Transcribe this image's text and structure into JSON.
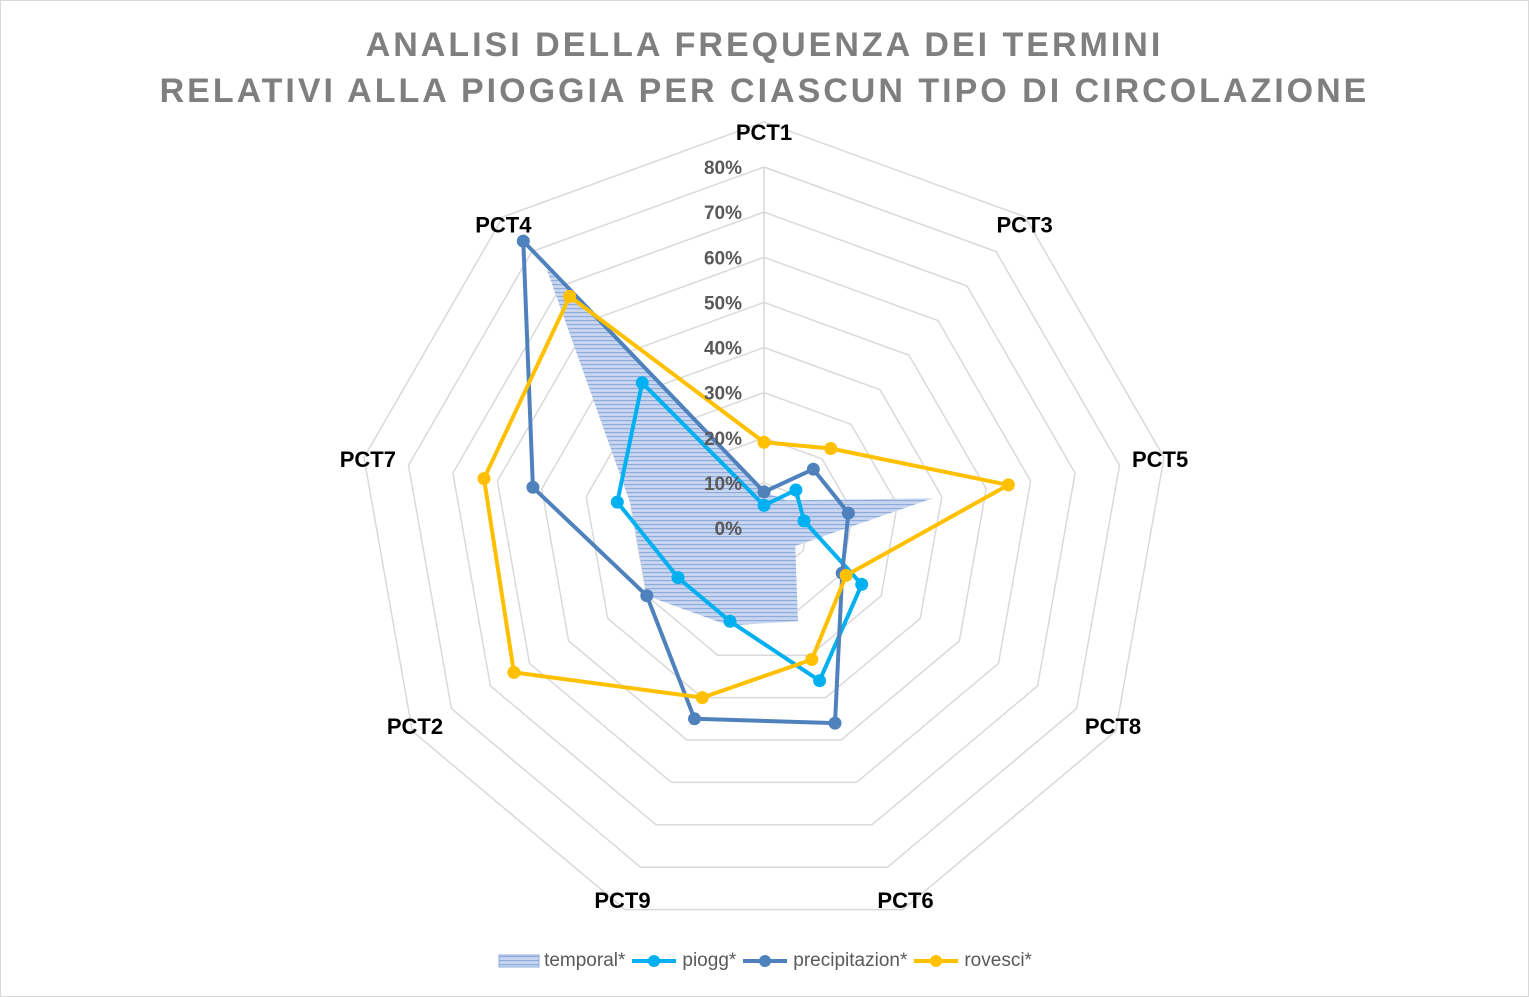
{
  "chart_data": {
    "type": "radar",
    "title": [
      "ANALISI DELLA FREQUENZA DEI TERMINI",
      "RELATIVI ALLA PIOGGIA PER CIASCUN TIPO DI CIRCOLAZIONE"
    ],
    "categories": [
      "PCT1",
      "PCT3",
      "PCT5",
      "PCT8",
      "PCT6",
      "PCT9",
      "PCT2",
      "PCT7",
      "PCT4"
    ],
    "radial_ticks": [
      "0%",
      "10%",
      "20%",
      "30%",
      "40%",
      "50%",
      "60%",
      "70%",
      "80%"
    ],
    "rmax": 80,
    "grid": true,
    "legend_position": "bottom",
    "series": [
      {
        "name": "temporal*",
        "style": "area",
        "color": "#8FAADC",
        "values": [
          8,
          8,
          38,
          8,
          22,
          23,
          30,
          30,
          75
        ]
      },
      {
        "name": "piogg*",
        "style": "line-marker",
        "color": "#00B0F0",
        "values": [
          5,
          11,
          9,
          25,
          36,
          22,
          22,
          33,
          42
        ]
      },
      {
        "name": "precipitazion*",
        "style": "line-marker",
        "color": "#4F81BD",
        "values": [
          8,
          17,
          19,
          20,
          46,
          45,
          30,
          52,
          83
        ]
      },
      {
        "name": "rovesci*",
        "style": "line-marker",
        "color": "#FFC000",
        "values": [
          19,
          23,
          55,
          21,
          31,
          40,
          64,
          63,
          67
        ]
      }
    ]
  }
}
